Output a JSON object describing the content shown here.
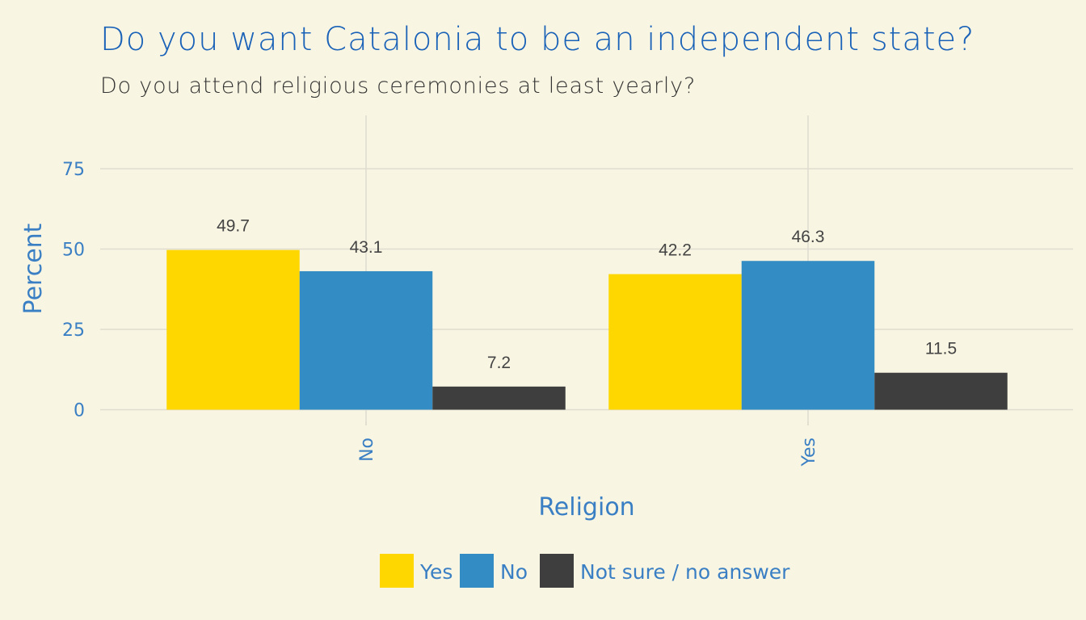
{
  "chart_data": {
    "type": "bar",
    "title": "Do you want Catalonia to be an independent state?",
    "subtitle": "Do you attend religious ceremonies at least yearly?",
    "xlabel": "Religion",
    "ylabel": "Percent",
    "categories": [
      "No",
      "Yes"
    ],
    "series": [
      {
        "name": "Yes",
        "color": "#fed600",
        "values": [
          49.7,
          42.2
        ]
      },
      {
        "name": "No",
        "color": "#338cc4",
        "values": [
          43.1,
          46.3
        ]
      },
      {
        "name": "Not sure / no answer",
        "color": "#3e3e3e",
        "values": [
          7.2,
          11.5
        ]
      }
    ],
    "yticks": [
      0,
      25,
      50,
      75
    ],
    "ylim": [
      0,
      92
    ],
    "grid": true,
    "legend_position": "bottom"
  }
}
